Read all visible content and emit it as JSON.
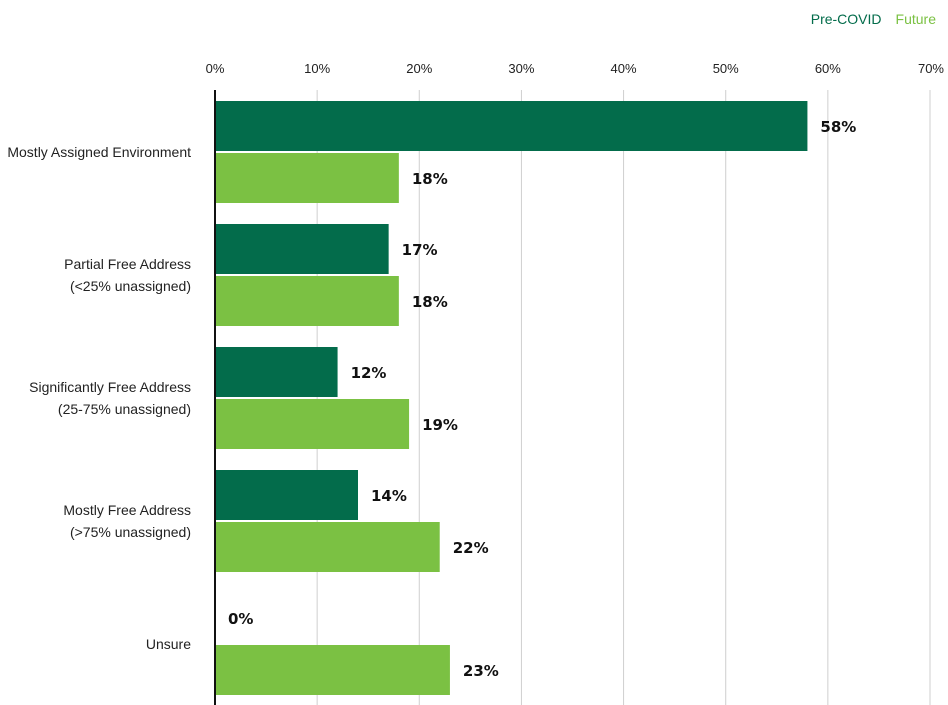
{
  "chart_data": {
    "type": "bar",
    "orientation": "horizontal",
    "categories": [
      [
        "Mostly Assigned Environment"
      ],
      [
        "Partial Free Address",
        "(<25% unassigned)"
      ],
      [
        "Significantly Free Address",
        "(25-75% unassigned)"
      ],
      [
        "Mostly Free Address",
        "(>75% unassigned)"
      ],
      [
        "Unsure"
      ]
    ],
    "series": [
      {
        "name": "Pre-COVID",
        "color": "#036c4b",
        "values": [
          58,
          17,
          12,
          14,
          0
        ],
        "labels": [
          "58%",
          "17%",
          "12%",
          "14%",
          "0%"
        ]
      },
      {
        "name": "Future",
        "color": "#7bc143",
        "values": [
          18,
          18,
          19,
          22,
          23
        ],
        "labels": [
          "18%",
          "18%",
          "19%",
          "22%",
          "23%"
        ]
      }
    ],
    "xlim": [
      0,
      70
    ],
    "xticks": [
      "0%",
      "10%",
      "20%",
      "30%",
      "40%",
      "50%",
      "60%",
      "70%"
    ],
    "grid": true,
    "legend_position": "top-right",
    "title": "",
    "xlabel": "",
    "ylabel": ""
  }
}
